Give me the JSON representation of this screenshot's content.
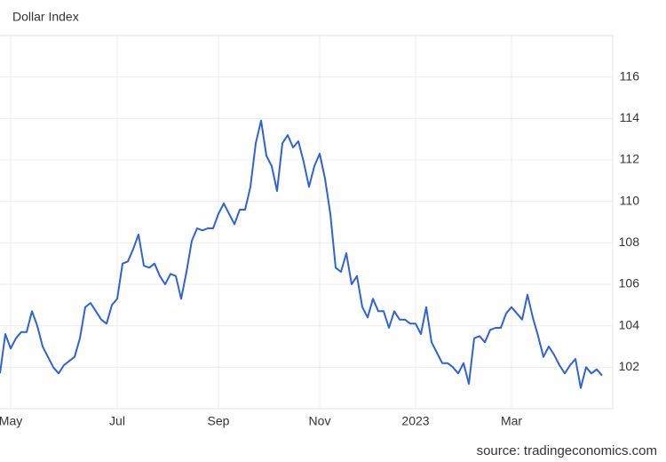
{
  "chart_data": {
    "type": "line",
    "title": "Dollar Index",
    "source": "source: tradingeconomics.com",
    "categories": [
      null,
      null,
      "May",
      null,
      null,
      null,
      null,
      null,
      null,
      null,
      null,
      null,
      null,
      null,
      null,
      null,
      null,
      null,
      null,
      null,
      null,
      null,
      "Jul",
      null,
      null,
      null,
      null,
      null,
      null,
      null,
      null,
      null,
      null,
      null,
      null,
      null,
      null,
      null,
      null,
      null,
      null,
      "Sep",
      null,
      null,
      null,
      null,
      null,
      null,
      null,
      null,
      null,
      null,
      null,
      null,
      null,
      null,
      null,
      null,
      null,
      null,
      "Nov",
      null,
      null,
      null,
      null,
      null,
      null,
      null,
      null,
      null,
      null,
      null,
      null,
      null,
      null,
      null,
      null,
      null,
      "2023",
      null,
      null,
      null,
      null,
      null,
      null,
      null,
      null,
      null,
      null,
      null,
      null,
      null,
      null,
      null,
      null,
      null,
      "Mar",
      null,
      null,
      null,
      null,
      null,
      null,
      null,
      null,
      null,
      null,
      null,
      null,
      null,
      null,
      null,
      null,
      null
    ],
    "values": [
      101.7,
      103.6,
      102.9,
      103.4,
      103.7,
      103.7,
      104.7,
      104.0,
      103.0,
      102.5,
      102.0,
      101.7,
      102.1,
      102.3,
      102.5,
      103.4,
      104.9,
      105.1,
      104.7,
      104.3,
      104.1,
      105.0,
      105.3,
      107.0,
      107.1,
      107.7,
      108.4,
      106.9,
      106.8,
      107.0,
      106.4,
      106.0,
      106.5,
      106.4,
      105.3,
      106.6,
      108.1,
      108.7,
      108.6,
      108.7,
      108.7,
      109.4,
      109.9,
      109.4,
      108.9,
      109.6,
      109.6,
      110.7,
      112.8,
      113.9,
      112.2,
      111.7,
      110.5,
      112.8,
      113.2,
      112.6,
      112.9,
      111.9,
      110.7,
      111.7,
      112.3,
      111.1,
      109.4,
      106.8,
      106.6,
      107.5,
      106.0,
      106.4,
      104.9,
      104.4,
      105.3,
      104.7,
      104.7,
      103.9,
      104.7,
      104.3,
      104.3,
      104.1,
      104.1,
      103.6,
      104.9,
      103.2,
      102.7,
      102.2,
      102.2,
      102.0,
      101.7,
      102.2,
      101.2,
      103.4,
      103.5,
      103.2,
      103.8,
      103.9,
      103.9,
      104.6,
      104.9,
      104.6,
      104.3,
      105.5,
      104.4,
      103.5,
      102.5,
      103.0,
      102.6,
      102.1,
      101.7,
      102.1,
      102.4,
      101.0,
      102.0,
      101.7,
      101.9,
      101.6
    ],
    "color": "#2f62d8",
    "ylim": [
      100,
      118
    ],
    "yticks": [
      102,
      104,
      106,
      108,
      110,
      112,
      114,
      116
    ],
    "grid": true
  }
}
